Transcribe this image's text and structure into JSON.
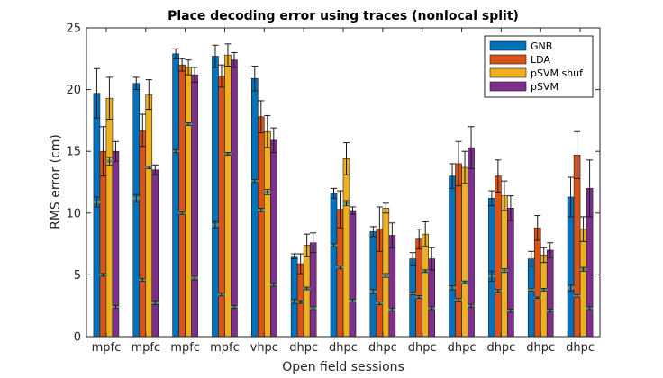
{
  "chart_data": {
    "type": "bar",
    "title": "Place decoding error using traces (nonlocal split)",
    "xlabel": "Open field sessions",
    "ylabel": "RMS error (cm)",
    "ylim": [
      0,
      25
    ],
    "yticks": [
      0,
      5,
      10,
      15,
      20,
      25
    ],
    "grid": false,
    "legend_position": "top-right",
    "categories": [
      "mpfc",
      "mpfc",
      "mpfc",
      "mpfc",
      "vhpc",
      "dhpc",
      "dhpc",
      "dhpc",
      "dhpc",
      "dhpc",
      "dhpc",
      "dhpc",
      "dhpc"
    ],
    "series": [
      {
        "name": "GNB",
        "color": "#0072bd",
        "values": [
          19.7,
          20.5,
          22.9,
          22.7,
          20.9,
          6.5,
          11.6,
          8.5,
          6.3,
          13.0,
          11.2,
          6.3,
          11.3
        ],
        "err": [
          2.0,
          0.5,
          0.4,
          0.9,
          1.0,
          0.2,
          0.4,
          0.4,
          0.5,
          1.0,
          0.6,
          0.6,
          1.6
        ],
        "chance_high": [
          11.2,
          11.4,
          15.0,
          9.2,
          12.6,
          2.9,
          7.4,
          3.7,
          3.5,
          4.0,
          5.2,
          3.8,
          4.1
        ],
        "chance_low": [
          10.6,
          11.0,
          15.0,
          8.9,
          12.6,
          2.8,
          7.4,
          3.6,
          3.5,
          3.9,
          4.6,
          3.8,
          3.8
        ]
      },
      {
        "name": "LDA",
        "color": "#d95319",
        "values": [
          15.0,
          16.7,
          22.0,
          21.1,
          17.8,
          5.9,
          10.3,
          8.7,
          7.9,
          14.0,
          13.0,
          8.8,
          14.7
        ],
        "err": [
          2.0,
          1.3,
          0.5,
          0.9,
          1.3,
          0.8,
          1.5,
          1.8,
          0.8,
          1.8,
          1.3,
          1.0,
          1.9
        ],
        "chance_high": [
          5.0,
          4.6,
          10.0,
          3.4,
          10.0,
          2.8,
          5.6,
          2.7,
          3.2,
          3.0,
          3.7,
          3.1,
          3.3
        ],
        "chance_low": [
          5.0,
          4.6,
          10.0,
          3.4,
          10.5,
          2.8,
          5.6,
          2.7,
          3.2,
          3.0,
          3.7,
          3.2,
          3.3
        ]
      },
      {
        "name": "pSVM shuf",
        "color": "#edb120",
        "values": [
          19.3,
          19.6,
          21.8,
          22.8,
          16.6,
          7.4,
          14.4,
          10.4,
          8.3,
          13.7,
          11.4,
          6.6,
          8.7
        ],
        "err": [
          1.7,
          1.2,
          0.6,
          0.9,
          1.3,
          0.9,
          1.3,
          0.4,
          1.0,
          1.3,
          1.2,
          0.6,
          1.0
        ],
        "chance_high": [
          14.4,
          13.7,
          17.2,
          14.8,
          11.8,
          3.9,
          10.9,
          5.0,
          5.3,
          4.4,
          5.4,
          3.8,
          5.5
        ],
        "chance_low": [
          14.0,
          13.7,
          17.2,
          14.8,
          11.6,
          3.9,
          10.7,
          4.9,
          5.3,
          4.4,
          5.3,
          3.8,
          5.4
        ]
      },
      {
        "name": "pSVM",
        "color": "#7e2f8e",
        "values": [
          15.0,
          13.5,
          21.2,
          22.4,
          15.9,
          7.6,
          10.2,
          8.2,
          6.3,
          15.3,
          10.4,
          7.0,
          12.0
        ],
        "err": [
          0.8,
          0.4,
          0.6,
          0.6,
          1.0,
          0.8,
          0.3,
          1.0,
          0.9,
          1.7,
          1.0,
          0.6,
          2.3
        ],
        "chance_high": [
          2.4,
          2.8,
          4.8,
          2.4,
          4.2,
          2.3,
          2.9,
          2.2,
          2.3,
          2.5,
          2.1,
          2.1,
          2.3
        ],
        "chance_low": [
          2.4,
          2.7,
          4.7,
          2.4,
          4.2,
          2.3,
          2.9,
          2.2,
          2.3,
          2.5,
          2.1,
          2.1,
          2.3
        ]
      }
    ]
  }
}
